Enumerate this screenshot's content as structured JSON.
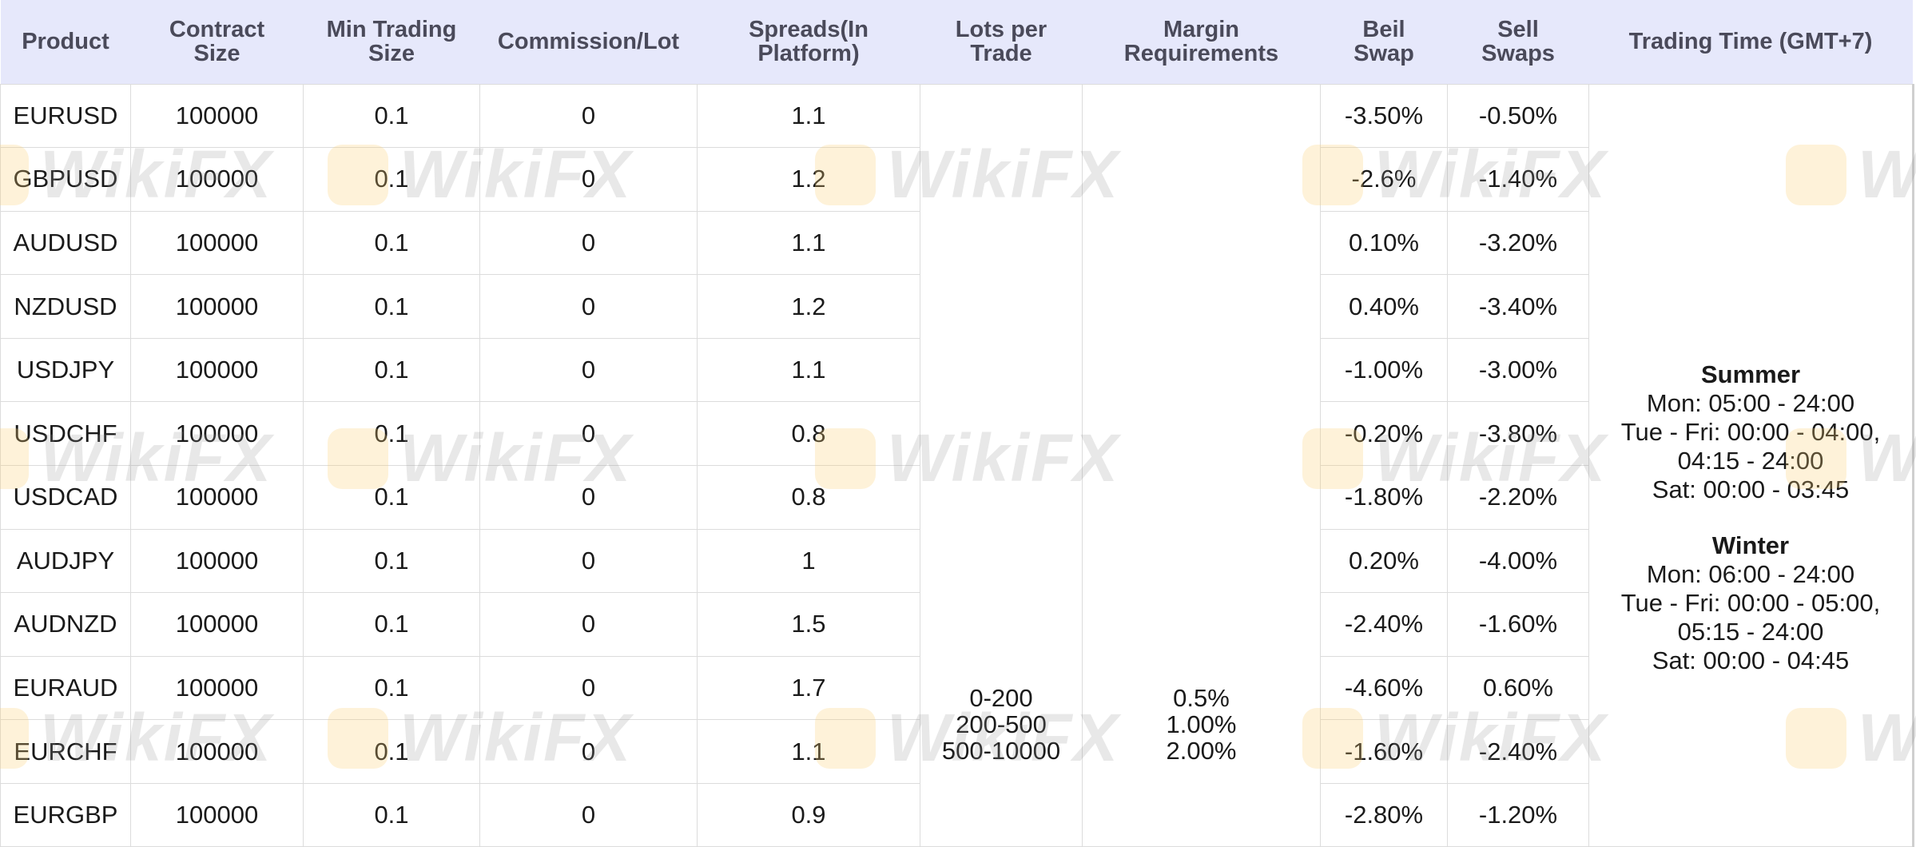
{
  "headers": {
    "product": "Product",
    "contract_size": [
      "Contract",
      "Size"
    ],
    "min_trading_size": [
      "Min Trading",
      "Size"
    ],
    "commission": "Commission/Lot",
    "spreads": [
      "Spreads(In",
      "Platform)"
    ],
    "lots_per_trade": [
      "Lots per",
      "Trade"
    ],
    "margin": [
      "Margin",
      "Requirements"
    ],
    "buy_swap": [
      "Beil",
      "Swap"
    ],
    "sell_swap": [
      "Sell",
      "Swaps"
    ],
    "trading_time": "Trading Time (GMT+7)"
  },
  "rows": [
    {
      "product": "EURUSD",
      "contract": "100000",
      "min": "0.1",
      "commission": "0",
      "spread": "1.1",
      "buy": "-3.50%",
      "sell": "-0.50%"
    },
    {
      "product": "GBPUSD",
      "contract": "100000",
      "min": "0.1",
      "commission": "0",
      "spread": "1.2",
      "buy": "-2.6%",
      "sell": "-1.40%"
    },
    {
      "product": "AUDUSD",
      "contract": "100000",
      "min": "0.1",
      "commission": "0",
      "spread": "1.1",
      "buy": "0.10%",
      "sell": "-3.20%"
    },
    {
      "product": "NZDUSD",
      "contract": "100000",
      "min": "0.1",
      "commission": "0",
      "spread": "1.2",
      "buy": "0.40%",
      "sell": "-3.40%"
    },
    {
      "product": "USDJPY",
      "contract": "100000",
      "min": "0.1",
      "commission": "0",
      "spread": "1.1",
      "buy": "-1.00%",
      "sell": "-3.00%"
    },
    {
      "product": "USDCHF",
      "contract": "100000",
      "min": "0.1",
      "commission": "0",
      "spread": "0.8",
      "buy": "-0.20%",
      "sell": "-3.80%"
    },
    {
      "product": "USDCAD",
      "contract": "100000",
      "min": "0.1",
      "commission": "0",
      "spread": "0.8",
      "buy": "-1.80%",
      "sell": "-2.20%"
    },
    {
      "product": "AUDJPY",
      "contract": "100000",
      "min": "0.1",
      "commission": "0",
      "spread": "1",
      "buy": "0.20%",
      "sell": "-4.00%"
    },
    {
      "product": "AUDNZD",
      "contract": "100000",
      "min": "0.1",
      "commission": "0",
      "spread": "1.5",
      "buy": "-2.40%",
      "sell": "-1.60%"
    },
    {
      "product": "EURAUD",
      "contract": "100000",
      "min": "0.1",
      "commission": "0",
      "spread": "1.7",
      "buy": "-4.60%",
      "sell": "0.60%"
    },
    {
      "product": "EURCHF",
      "contract": "100000",
      "min": "0.1",
      "commission": "0",
      "spread": "1.1",
      "buy": "-1.60%",
      "sell": "-2.40%"
    },
    {
      "product": "EURGBP",
      "contract": "100000",
      "min": "0.1",
      "commission": "0",
      "spread": "0.9",
      "buy": "-2.80%",
      "sell": "-1.20%"
    }
  ],
  "lots_per_trade": [
    "0-200",
    "200-500",
    "500-10000"
  ],
  "margin_requirements": [
    "0.5%",
    "1.00%",
    "2.00%"
  ],
  "trading_time": {
    "summer": {
      "label": "Summer",
      "lines": [
        "Mon: 05:00 - 24:00",
        "Tue - Fri: 00:00 - 04:00,",
        "04:15 - 24:00",
        "Sat: 00:00 - 03:45"
      ]
    },
    "winter": {
      "label": "Winter",
      "lines": [
        "Mon: 06:00 - 24:00",
        "Tue - Fri: 00:00 - 05:00,",
        "05:15 - 24:00",
        "Sat: 00:00 - 04:45"
      ]
    }
  },
  "watermark": "WikiFX",
  "colors": {
    "header_bg": "#e6e8fb",
    "header_text": "#4a4a5a",
    "grid": "#dcdcdc"
  }
}
